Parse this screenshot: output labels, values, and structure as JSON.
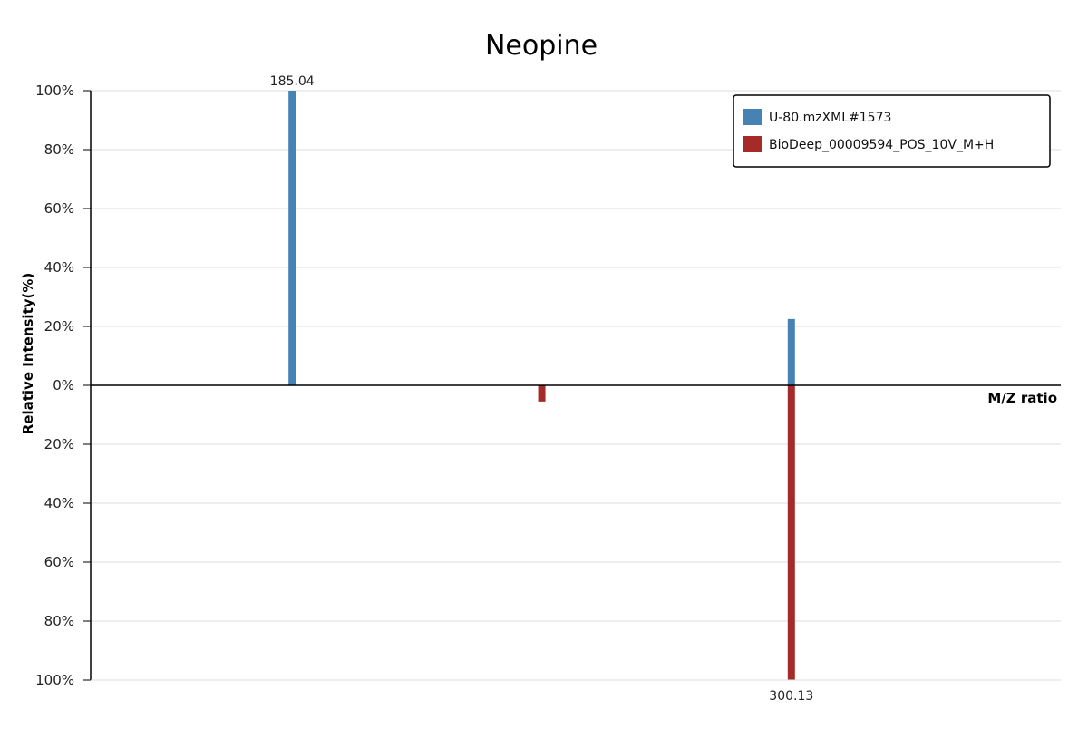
{
  "chart_data": {
    "type": "bar",
    "title": "Neopine",
    "xlabel": "M/Z ratio",
    "ylabel": "Relative Intensity(%)",
    "y_tick_labels": [
      "100%",
      "80%",
      "60%",
      "40%",
      "20%",
      "0%",
      "20%",
      "40%",
      "60%",
      "80%",
      "100%"
    ],
    "ylim": [
      -100,
      100
    ],
    "xlim": [
      138.6,
      362.25
    ],
    "grid": true,
    "legend_position": "top-right",
    "series": [
      {
        "name": "U-80.mzXML#1573",
        "color": "#4682b4",
        "direction": "up",
        "points": [
          {
            "mz": 185.04,
            "intensity": 100,
            "label": "185.04"
          },
          {
            "mz": 300.13,
            "intensity": 22.5,
            "label": ""
          }
        ]
      },
      {
        "name": "BioDeep_00009594_POS_10V_M+H",
        "color": "#a52a2a",
        "direction": "down",
        "points": [
          {
            "mz": 242.6,
            "intensity": 5.5,
            "label": ""
          },
          {
            "mz": 300.13,
            "intensity": 100,
            "label": "300.13"
          }
        ]
      }
    ]
  }
}
